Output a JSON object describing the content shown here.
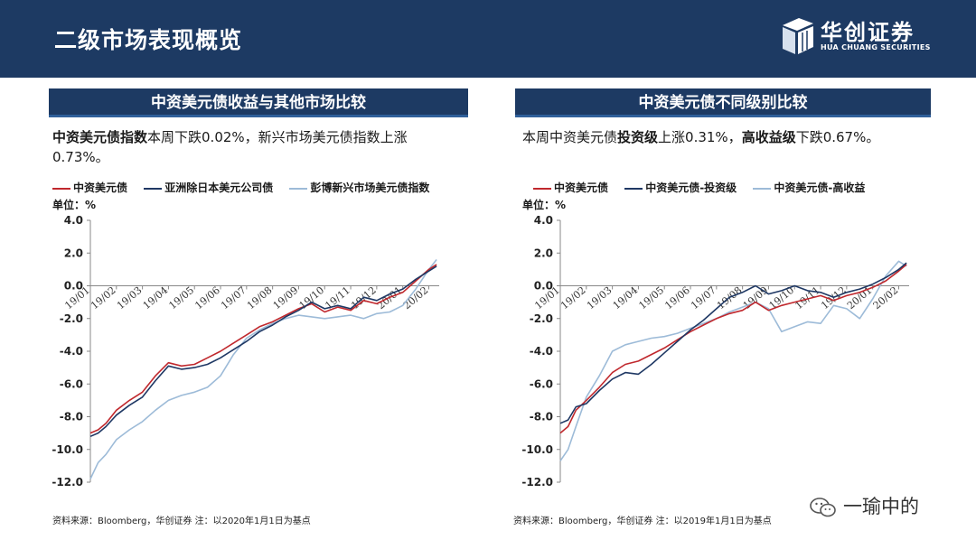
{
  "header": {
    "title": "二级市场表现概览",
    "logo_cn": "华创证券",
    "logo_en": "HUA CHUANG SECURITIES"
  },
  "left": {
    "panel_title": "中资美元债收益与其他市场比较",
    "desc_bold": "中资美元债指数",
    "desc_rest": "本周下跌0.02%，新兴市场美元债指数上涨0.73%。",
    "legend": [
      "中资美元债",
      "亚洲除日本美元公司债",
      "彭博新兴市场美元债指数"
    ],
    "unit": "单位：%",
    "source": "资料来源：Bloomberg，华创证券    注：以2020年1月1日为基点"
  },
  "right": {
    "panel_title": "中资美元债不同级别比较",
    "desc_p1": "本周中资美元债",
    "desc_b1": "投资级",
    "desc_p2": "上涨0.31%，",
    "desc_b2": "高收益级",
    "desc_p3": "下跌0.67%。",
    "legend": [
      "中资美元债",
      "中资美元债-投资级",
      "中资美元债-高收益"
    ],
    "unit": "单位：%",
    "source": "资料来源：Bloomberg，华创证券    注：以2019年1月1日为基点"
  },
  "watermark": "一瑜中的",
  "colors": {
    "navy": "#1d3a63",
    "red": "#c0282d",
    "dark": "#1f3864",
    "light": "#9dbbd8"
  },
  "chart_data": [
    {
      "type": "line",
      "ylim": [
        -12,
        4
      ],
      "yticks": [
        4.0,
        2.0,
        0.0,
        -2.0,
        -4.0,
        -6.0,
        -8.0,
        -10.0,
        -12.0
      ],
      "ytick_labels": [
        "4.0",
        "2.0",
        "0.0",
        "-2.0",
        "-4.0",
        "-6.0",
        "-8.0",
        "-10.0",
        "-12.0"
      ],
      "categories": [
        "19/01",
        "19/02",
        "19/03",
        "19/04",
        "19/05",
        "19/06",
        "19/07",
        "19/08",
        "19/09",
        "19/10",
        "19/11",
        "19/12",
        "20/01",
        "20/02"
      ],
      "series": [
        {
          "name": "中资美元债",
          "color": "#c0282d",
          "x": [
            0,
            0.3,
            0.6,
            1.0,
            1.5,
            2.0,
            2.5,
            3.0,
            3.5,
            4.0,
            4.5,
            5.0,
            5.5,
            6.0,
            6.5,
            7.0,
            7.5,
            8.0,
            8.5,
            9.0,
            9.5,
            10.0,
            10.5,
            11.0,
            11.5,
            12.0,
            12.5,
            13.0,
            13.3
          ],
          "y": [
            -9.0,
            -8.8,
            -8.4,
            -7.6,
            -7.0,
            -6.5,
            -5.5,
            -4.7,
            -4.9,
            -4.8,
            -4.4,
            -4.0,
            -3.5,
            -3.0,
            -2.5,
            -2.2,
            -1.8,
            -1.4,
            -1.1,
            -1.6,
            -1.3,
            -1.5,
            -0.9,
            -1.1,
            -0.7,
            -0.4,
            0.3,
            1.0,
            1.3
          ]
        },
        {
          "name": "亚洲除日本美元公司债",
          "color": "#1f3864",
          "x": [
            0,
            0.3,
            0.6,
            1.0,
            1.5,
            2.0,
            2.5,
            3.0,
            3.5,
            4.0,
            4.5,
            5.0,
            5.5,
            6.0,
            6.5,
            7.0,
            7.5,
            8.0,
            8.5,
            9.0,
            9.5,
            10.0,
            10.5,
            11.0,
            11.5,
            12.0,
            12.5,
            13.0,
            13.3
          ],
          "y": [
            -9.2,
            -9.0,
            -8.6,
            -7.9,
            -7.3,
            -6.8,
            -5.8,
            -4.9,
            -5.1,
            -5.0,
            -4.8,
            -4.4,
            -3.9,
            -3.4,
            -2.8,
            -2.4,
            -1.9,
            -1.5,
            -1.0,
            -1.4,
            -1.2,
            -1.4,
            -0.7,
            -0.9,
            -0.5,
            -0.2,
            0.4,
            0.9,
            1.2
          ]
        },
        {
          "name": "彭博新兴市场美元债指数",
          "color": "#9dbbd8",
          "x": [
            0,
            0.3,
            0.6,
            1.0,
            1.5,
            2.0,
            2.5,
            3.0,
            3.5,
            4.0,
            4.5,
            5.0,
            5.5,
            6.0,
            6.5,
            7.0,
            7.5,
            8.0,
            8.5,
            9.0,
            9.5,
            10.0,
            10.5,
            11.0,
            11.5,
            12.0,
            12.5,
            13.0,
            13.3
          ],
          "y": [
            -11.8,
            -10.8,
            -10.3,
            -9.4,
            -8.8,
            -8.3,
            -7.6,
            -7.0,
            -6.7,
            -6.5,
            -6.2,
            -5.5,
            -4.2,
            -3.2,
            -2.7,
            -2.3,
            -2.0,
            -1.8,
            -1.9,
            -2.0,
            -1.9,
            -1.8,
            -2.0,
            -1.7,
            -1.6,
            -1.2,
            -0.2,
            1.0,
            1.6
          ]
        }
      ]
    },
    {
      "type": "line",
      "ylim": [
        -12,
        4
      ],
      "yticks": [
        4.0,
        2.0,
        0.0,
        -2.0,
        -4.0,
        -6.0,
        -8.0,
        -10.0,
        -12.0
      ],
      "ytick_labels": [
        "4.0",
        "2.0",
        "0.0",
        "-2.0",
        "-4.0",
        "-6.0",
        "-8.0",
        "-10.0",
        "-12.0"
      ],
      "categories": [
        "19/01",
        "19/02",
        "19/03",
        "19/04",
        "19/05",
        "19/06",
        "19/07",
        "19/08",
        "19/09",
        "19/10",
        "19/11",
        "19/12",
        "20/01",
        "20/02"
      ],
      "series": [
        {
          "name": "中资美元债",
          "color": "#c0282d",
          "x": [
            0,
            0.3,
            0.6,
            1.0,
            1.5,
            2.0,
            2.5,
            3.0,
            3.5,
            4.0,
            4.5,
            5.0,
            5.5,
            6.0,
            6.5,
            7.0,
            7.5,
            8.0,
            8.5,
            9.0,
            9.5,
            10.0,
            10.5,
            11.0,
            11.5,
            12.0,
            12.5,
            13.0,
            13.3
          ],
          "y": [
            -9.0,
            -8.6,
            -7.6,
            -7.0,
            -6.2,
            -5.3,
            -4.8,
            -4.6,
            -4.2,
            -3.8,
            -3.3,
            -2.8,
            -2.4,
            -2.0,
            -1.7,
            -1.5,
            -1.0,
            -1.5,
            -1.2,
            -1.0,
            -0.8,
            -0.6,
            -0.9,
            -0.6,
            -0.4,
            -0.1,
            0.3,
            0.9,
            1.3
          ]
        },
        {
          "name": "中资美元债-投资级",
          "color": "#1f3864",
          "x": [
            0,
            0.3,
            0.6,
            1.0,
            1.5,
            2.0,
            2.5,
            3.0,
            3.5,
            4.0,
            4.5,
            5.0,
            5.5,
            6.0,
            6.5,
            7.0,
            7.5,
            8.0,
            8.5,
            9.0,
            9.5,
            10.0,
            10.5,
            11.0,
            11.5,
            12.0,
            12.5,
            13.0,
            13.3
          ],
          "y": [
            -8.4,
            -8.2,
            -7.4,
            -7.2,
            -6.4,
            -5.7,
            -5.3,
            -5.4,
            -4.8,
            -4.1,
            -3.4,
            -2.7,
            -2.1,
            -1.4,
            -0.7,
            -0.4,
            0.0,
            -0.5,
            -0.3,
            0.0,
            -0.3,
            -0.4,
            -0.7,
            -0.4,
            -0.2,
            0.1,
            0.5,
            1.0,
            1.4
          ]
        },
        {
          "name": "中资美元债-高收益",
          "color": "#9dbbd8",
          "x": [
            0,
            0.3,
            0.6,
            1.0,
            1.5,
            2.0,
            2.5,
            3.0,
            3.5,
            4.0,
            4.5,
            5.0,
            5.5,
            6.0,
            6.5,
            7.0,
            7.5,
            8.0,
            8.5,
            9.0,
            9.5,
            10.0,
            10.5,
            11.0,
            11.5,
            12.0,
            12.5,
            13.0,
            13.3
          ],
          "y": [
            -10.7,
            -10.0,
            -8.6,
            -6.8,
            -5.5,
            -4.0,
            -3.6,
            -3.4,
            -3.2,
            -3.1,
            -2.9,
            -2.6,
            -2.3,
            -2.0,
            -1.6,
            -1.3,
            -1.0,
            -1.4,
            -2.8,
            -2.5,
            -2.2,
            -2.3,
            -1.2,
            -1.4,
            -2.0,
            -0.8,
            0.6,
            1.5,
            1.2
          ]
        }
      ]
    }
  ]
}
